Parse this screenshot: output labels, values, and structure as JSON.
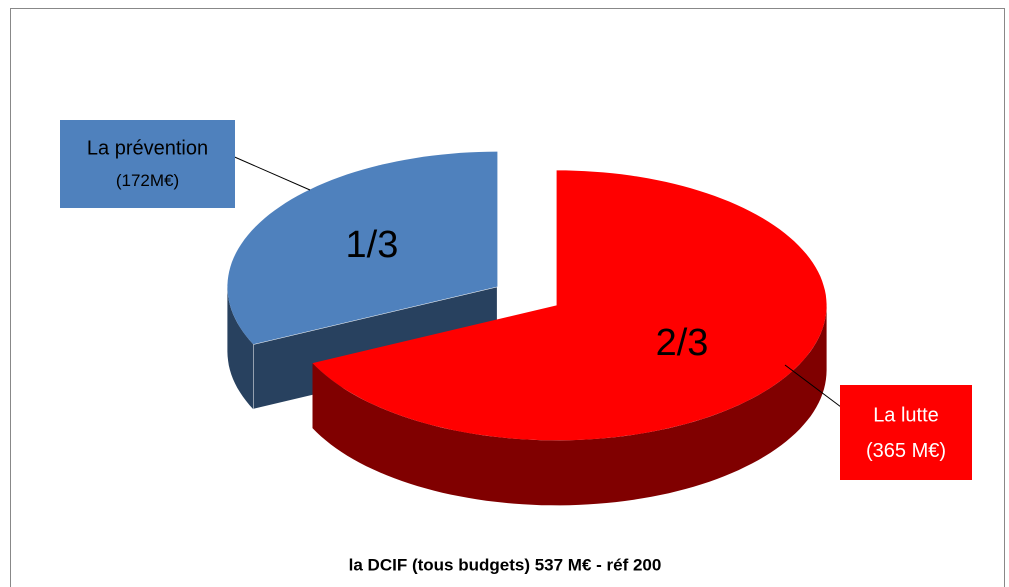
{
  "chart_data": {
    "type": "pie3d",
    "title": "la DCIF (tous budgets) 537 M€ - réf 200",
    "categories": [
      "La prévention",
      "La lutte"
    ],
    "values": [
      172,
      365
    ],
    "value_labels": [
      "(172M€)",
      "(365 M€)"
    ],
    "share_labels": [
      "1/3",
      "2/3"
    ],
    "colors": [
      "#4f81bd",
      "#ff0000"
    ]
  }
}
